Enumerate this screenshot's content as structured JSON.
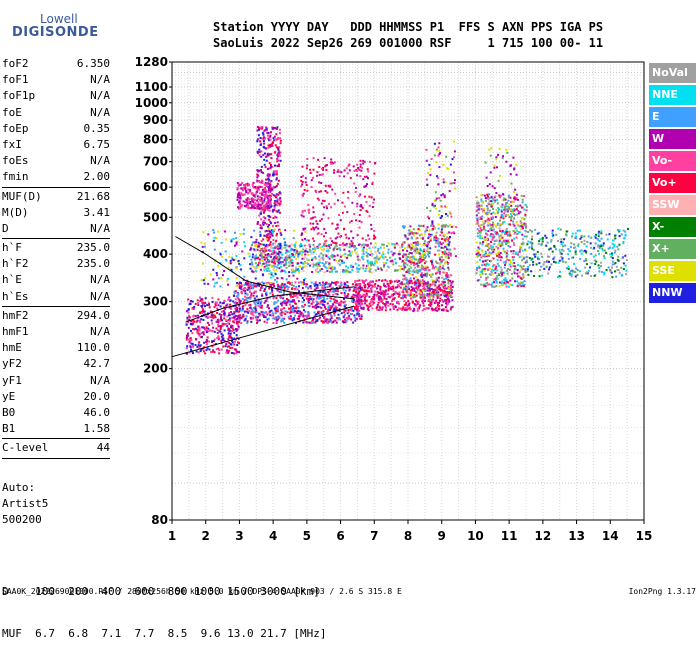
{
  "logo": {
    "top": "Lowell",
    "bottom": "DIGISONDE"
  },
  "header": {
    "line1": "Station YYYY DAY   DDD HHMMSS P1  FFS S AXN PPS IGA PS",
    "line2": "SaoLuis 2022 Sep26 269 001000 RSF     1 715 100 00- 11"
  },
  "params": [
    {
      "label": "foF2",
      "value": "6.350"
    },
    {
      "label": "foF1",
      "value": "N/A"
    },
    {
      "label": "foF1p",
      "value": "N/A"
    },
    {
      "label": "foE",
      "value": "N/A"
    },
    {
      "label": "foEp",
      "value": "0.35"
    },
    {
      "label": "fxI",
      "value": "6.75"
    },
    {
      "label": "foEs",
      "value": "N/A"
    },
    {
      "label": "fmin",
      "value": "2.00"
    },
    {
      "sep": true
    },
    {
      "label": "MUF(D)",
      "value": "21.68"
    },
    {
      "label": "M(D)",
      "value": "3.41"
    },
    {
      "label": "D",
      "value": "N/A"
    },
    {
      "sep": true
    },
    {
      "label": "h`F",
      "value": "235.0"
    },
    {
      "label": "h`F2",
      "value": "235.0"
    },
    {
      "label": "h`E",
      "value": "N/A"
    },
    {
      "label": "h`Es",
      "value": "N/A"
    },
    {
      "sep": true
    },
    {
      "label": "hmF2",
      "value": "294.0"
    },
    {
      "label": "hmF1",
      "value": "N/A"
    },
    {
      "label": "hmE",
      "value": "110.0"
    },
    {
      "label": "yF2",
      "value": "42.7"
    },
    {
      "label": "yF1",
      "value": "N/A"
    },
    {
      "label": "yE",
      "value": "20.0"
    },
    {
      "label": "B0",
      "value": "46.0"
    },
    {
      "label": "B1",
      "value": "1.58"
    },
    {
      "sep": true
    },
    {
      "label": "C-level",
      "value": "44"
    },
    {
      "sep": true
    }
  ],
  "auto": {
    "l1": "Auto:",
    "l2": "Artist5",
    "l3": "500200"
  },
  "dmuf": {
    "d_line": "D    100  200  400  600  800 1000 1500 3000 [km]",
    "muf_line": "MUF  6.7  6.8  7.1  7.7  8.5  9.6 13.0 21.7 [MHz]"
  },
  "footer": "SAA0K_2022269001000.RSF / 280fx256h 50 kHz 5.0 km / DPS-4 SAA0K 903 / 2.6 S 315.8 E",
  "version": "Ion2Png 1.3.17",
  "legend": [
    {
      "label": "NoVal",
      "color": "#a0a0a0"
    },
    {
      "label": "NNE",
      "color": "#00e0f0"
    },
    {
      "label": "E",
      "color": "#40a0ff"
    },
    {
      "label": "W",
      "color": "#b000b0"
    },
    {
      "label": "Vo-",
      "color": "#ff40a0"
    },
    {
      "label": "Vo+",
      "color": "#ff0040"
    },
    {
      "label": "SSW",
      "color": "#ffb0b0"
    },
    {
      "label": "X-",
      "color": "#008000"
    },
    {
      "label": "X+",
      "color": "#60b060"
    },
    {
      "label": "SSE",
      "color": "#e0e000"
    },
    {
      "label": "NNW",
      "color": "#2020e0"
    }
  ],
  "chart_data": {
    "type": "scatter",
    "title": "",
    "xlabel": "",
    "ylabel": "",
    "xlim": [
      1,
      15
    ],
    "ylim": [
      80,
      1280
    ],
    "yscale": "log",
    "xticks": [
      1,
      2,
      3,
      4,
      5,
      6,
      7,
      8,
      9,
      10,
      11,
      12,
      13,
      14,
      15
    ],
    "yticks": [
      80,
      200,
      300,
      400,
      500,
      600,
      700,
      800,
      900,
      1000,
      1100,
      1280
    ],
    "grid": true,
    "clusters": [
      {
        "x": [
          1.4,
          3.0
        ],
        "y": [
          220,
          310
        ],
        "n": 420,
        "colors": [
          "#2020e0",
          "#b000b0",
          "#ff0040",
          "#ff40a0"
        ]
      },
      {
        "x": [
          2.8,
          6.6
        ],
        "y": [
          265,
          340
        ],
        "n": 900,
        "colors": [
          "#ff0040",
          "#ff40a0",
          "#b000b0",
          "#2020e0",
          "#40a0ff"
        ]
      },
      {
        "x": [
          6.4,
          9.3
        ],
        "y": [
          285,
          345
        ],
        "n": 550,
        "colors": [
          "#ff0040",
          "#ff40a0",
          "#b000b0"
        ]
      },
      {
        "x": [
          3.3,
          8.5
        ],
        "y": [
          360,
          430
        ],
        "n": 650,
        "colors": [
          "#e0e000",
          "#60b060",
          "#40a0ff",
          "#ffb0b0",
          "#b000b0",
          "#00e0f0"
        ]
      },
      {
        "x": [
          7.8,
          9.2
        ],
        "y": [
          310,
          480
        ],
        "n": 420,
        "colors": [
          "#b000b0",
          "#40a0ff",
          "#ff40a0",
          "#ff0040",
          "#60b060",
          "#a0a0a0",
          "#e0e000"
        ]
      },
      {
        "x": [
          10.0,
          11.5
        ],
        "y": [
          330,
          580
        ],
        "n": 650,
        "colors": [
          "#ff40a0",
          "#e0e000",
          "#60b060",
          "#b000b0",
          "#ff0040",
          "#40a0ff",
          "#a0a0a0",
          "#00e0f0"
        ]
      },
      {
        "x": [
          11.5,
          14.5
        ],
        "y": [
          350,
          470
        ],
        "n": 320,
        "colors": [
          "#00e0f0",
          "#40a0ff",
          "#a0a0a0",
          "#2020e0",
          "#008000",
          "#60b060"
        ]
      },
      {
        "x": [
          3.5,
          4.2
        ],
        "y": [
          380,
          870
        ],
        "n": 420,
        "colors": [
          "#b000b0",
          "#ff40a0",
          "#2020e0",
          "#ff0040"
        ]
      },
      {
        "x": [
          2.9,
          3.9
        ],
        "y": [
          530,
          620
        ],
        "n": 220,
        "colors": [
          "#b000b0",
          "#ff40a0"
        ]
      },
      {
        "x": [
          4.8,
          7.0
        ],
        "y": [
          420,
          720
        ],
        "n": 260,
        "colors": [
          "#b000b0",
          "#ff40a0",
          "#ff0040"
        ]
      },
      {
        "x": [
          8.5,
          9.4
        ],
        "y": [
          300,
          800
        ],
        "n": 160,
        "colors": [
          "#b000b0",
          "#e0e000",
          "#ff40a0",
          "#2020e0",
          "#60b060"
        ]
      },
      {
        "x": [
          10.2,
          11.2
        ],
        "y": [
          500,
          800
        ],
        "n": 50,
        "colors": [
          "#e0e000",
          "#b000b0",
          "#60b060"
        ]
      },
      {
        "x": [
          1.8,
          5.0
        ],
        "y": [
          330,
          470
        ],
        "n": 220,
        "colors": [
          "#2020e0",
          "#e0e000",
          "#00e0f0",
          "#40a0ff",
          "#b000b0"
        ]
      }
    ],
    "fit_lines": [
      {
        "points": [
          [
            1.0,
            215
          ],
          [
            6.4,
            292
          ]
        ]
      },
      {
        "points": [
          [
            1.1,
            445
          ],
          [
            2.0,
            400
          ],
          [
            3.2,
            340
          ],
          [
            4.5,
            318
          ],
          [
            6.4,
            305
          ]
        ]
      },
      {
        "points": [
          [
            1.4,
            265
          ],
          [
            2.5,
            288
          ],
          [
            4.0,
            310
          ],
          [
            5.5,
            322
          ],
          [
            6.4,
            328
          ]
        ]
      }
    ]
  }
}
